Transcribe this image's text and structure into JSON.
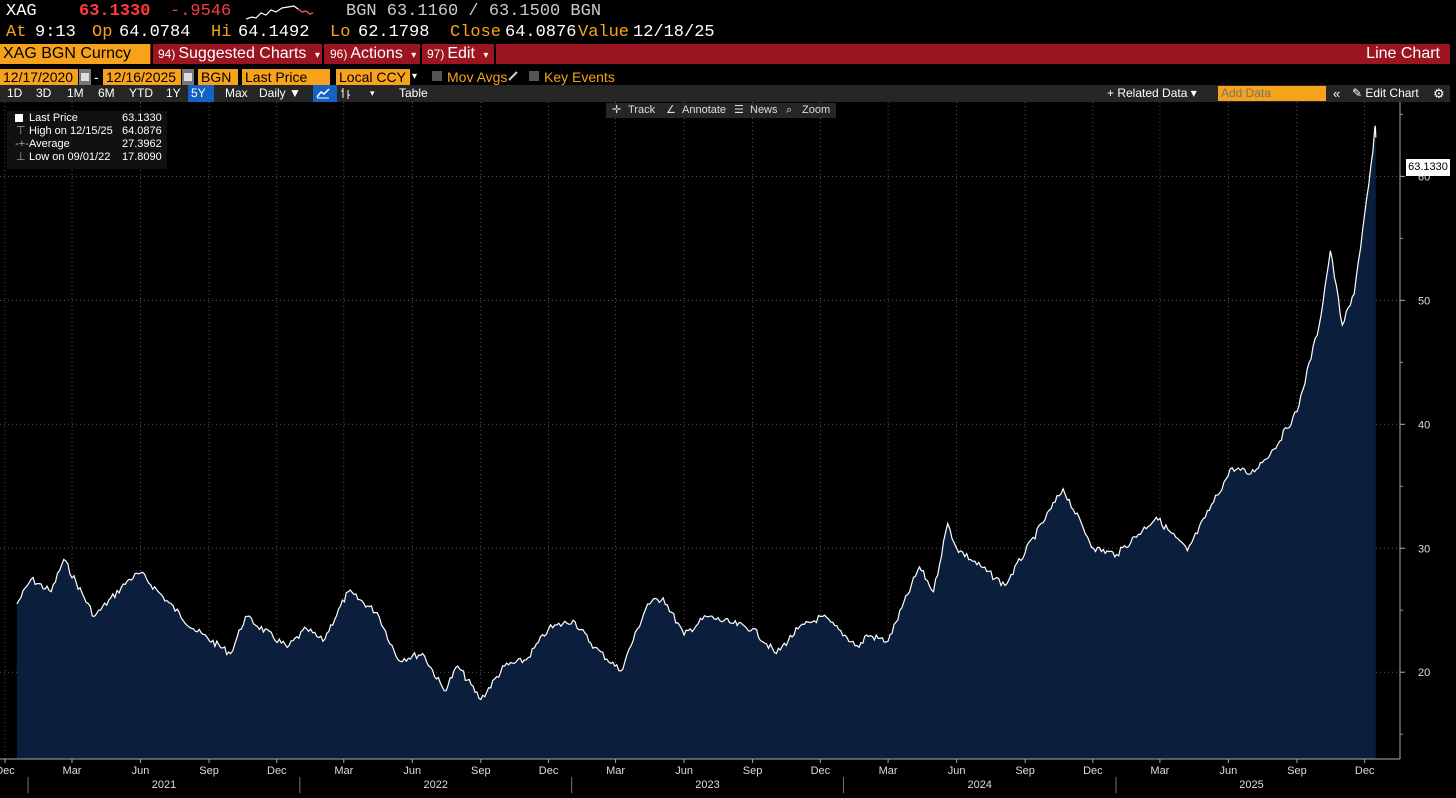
{
  "quote": {
    "ticker": "XAG",
    "last": "63.1330",
    "change": "-.9546",
    "source_quote": "BGN 63.1160 / 63.1500 BGN",
    "at_label": "At",
    "at_value": "9:13",
    "op_label": "Op",
    "op_value": "64.0784",
    "hi_label": "Hi",
    "hi_value": "64.1492",
    "lo_label": "Lo",
    "lo_value": "62.1798",
    "close_label": "Close",
    "close_value": "64.0876",
    "value_label": "Value",
    "value_value": "12/18/25"
  },
  "menubar": {
    "security": "XAG BGN Curncy",
    "suggested_num": "94)",
    "suggested_label": "Suggested Charts",
    "actions_num": "96)",
    "actions_label": "Actions",
    "edit_num": "97)",
    "edit_label": "Edit",
    "title": "Line Chart"
  },
  "params": {
    "start_date": "12/17/2020",
    "dash": "-",
    "end_date": "12/16/2025",
    "source": "BGN",
    "field": "Last Price",
    "currency": "Local CCY",
    "mov_avgs": "Mov Avgs",
    "key_events": "Key Events"
  },
  "toolbar": {
    "ranges": [
      "1D",
      "3D",
      "1M",
      "6M",
      "YTD",
      "1Y",
      "5Y",
      "Max"
    ],
    "active_range": "5Y",
    "period": "Daily ▼",
    "table": "Table",
    "related": "+ Related Data ▾",
    "add_data_placeholder": "Add Data",
    "edit_chart": "Edit Chart"
  },
  "chart_tools": {
    "track": "Track",
    "annotate": "Annotate",
    "news": "News",
    "zoom": "Zoom"
  },
  "legend": {
    "last_label": "Last Price",
    "last_value": "63.1330",
    "high_label": "High on 12/15/25",
    "high_value": "64.0876",
    "avg_label": "Average",
    "avg_value": "27.3962",
    "low_label": "Low on 09/01/22",
    "low_value": "17.8090"
  },
  "colors": {
    "accent": "#f7a21b",
    "bar": "#9b1520",
    "price_up": "#ff3b3b",
    "fill": "#0b1f3c",
    "line": "#ffffff"
  },
  "chart_data": {
    "type": "area",
    "title": "",
    "xlabel": "",
    "ylabel": "",
    "ylim": [
      13,
      66
    ],
    "y_ticks": [
      20,
      30,
      40,
      50,
      60
    ],
    "last_value_label": "63.1330",
    "x_month_labels": [
      "Dec",
      "Mar",
      "Jun",
      "Sep",
      "Dec",
      "Mar",
      "Jun",
      "Sep",
      "Dec",
      "Mar",
      "Jun",
      "Sep",
      "Dec",
      "Mar",
      "Jun",
      "Sep",
      "Dec",
      "Mar",
      "Jun",
      "Sep",
      "Dec"
    ],
    "x_year_labels": [
      "2021",
      "2022",
      "2023",
      "2024",
      "2025"
    ],
    "series": [
      {
        "dates": [
          "2020-12-17",
          "2021-01-05",
          "2021-02-01",
          "2021-02-18",
          "2021-03-31",
          "2021-05-17",
          "2021-06-01",
          "2021-07-01",
          "2021-08-11",
          "2021-09-30",
          "2021-10-20",
          "2021-12-15",
          "2022-01-10",
          "2022-02-01",
          "2022-03-07",
          "2022-04-15",
          "2022-05-13",
          "2022-06-15",
          "2022-07-14",
          "2022-08-01",
          "2022-09-01",
          "2022-10-03",
          "2022-11-01",
          "2022-12-01",
          "2023-01-03",
          "2023-02-01",
          "2023-03-08",
          "2023-04-13",
          "2023-05-04",
          "2023-06-01",
          "2023-07-01",
          "2023-08-01",
          "2023-09-01",
          "2023-10-03",
          "2023-11-01",
          "2023-12-04",
          "2024-01-22",
          "2024-02-01",
          "2024-03-01",
          "2024-04-12",
          "2024-05-01",
          "2024-05-20",
          "2024-06-01",
          "2024-08-05",
          "2024-10-22",
          "2024-12-02",
          "2025-01-02",
          "2025-02-24",
          "2025-04-07",
          "2025-05-01",
          "2025-06-06",
          "2025-07-01",
          "2025-08-01",
          "2025-09-01",
          "2025-10-01",
          "2025-10-16",
          "2025-11-01",
          "2025-11-17",
          "2025-12-01",
          "2025-12-12",
          "2025-12-15",
          "2025-12-16"
        ],
        "values": [
          25.5,
          27.5,
          26.5,
          29.1,
          24.5,
          27.5,
          28.0,
          26.1,
          23.5,
          21.5,
          24.5,
          22.0,
          23.5,
          22.5,
          26.5,
          24.8,
          21.0,
          21.5,
          18.5,
          20.5,
          17.8,
          20.5,
          21.0,
          23.5,
          24.2,
          22.0,
          20.1,
          25.5,
          26.0,
          23.0,
          24.5,
          24.0,
          23.5,
          21.5,
          23.5,
          24.5,
          22.0,
          23.0,
          22.5,
          28.5,
          26.5,
          32.0,
          30.0,
          27.0,
          34.8,
          30.0,
          29.5,
          32.5,
          29.8,
          32.5,
          36.5,
          36.0,
          38.0,
          41.0,
          48.0,
          54.0,
          48.0,
          50.5,
          57.0,
          62.0,
          64.0876,
          63.133
        ]
      }
    ]
  }
}
